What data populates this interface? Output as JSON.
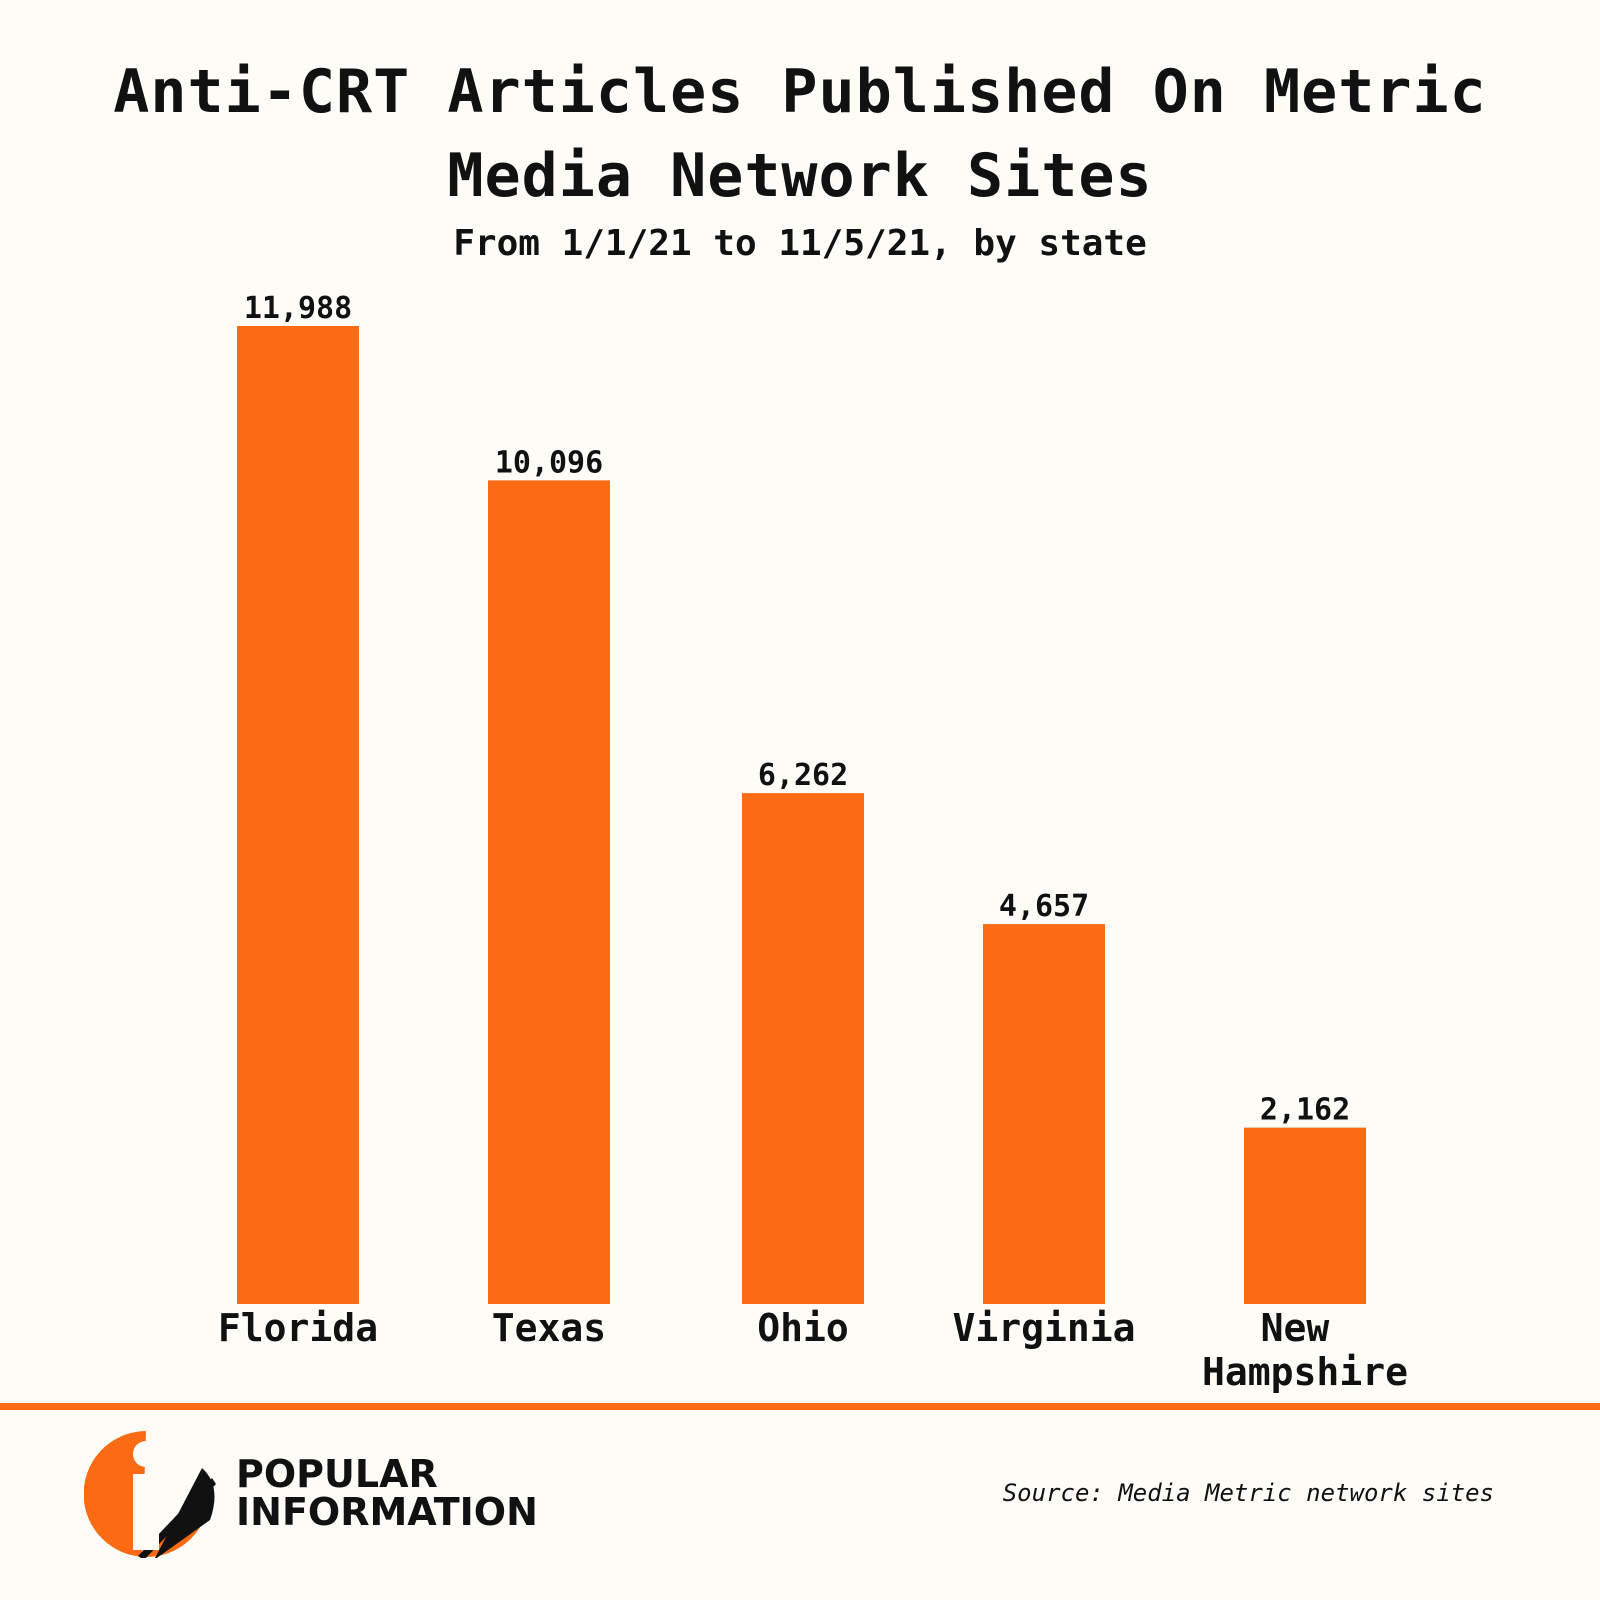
{
  "header": {
    "title_line1": "Anti-CRT Articles Published On Metric",
    "title_line2": "Media Network Sites",
    "subtitle": "From 1/1/21 to 11/5/21, by state"
  },
  "chart_data": {
    "type": "bar",
    "title": "Anti-CRT Articles Published On Metric Media Network Sites",
    "subtitle": "From 1/1/21 to 11/5/21, by state",
    "categories": [
      [
        "Florida"
      ],
      [
        "Texas"
      ],
      [
        "Ohio"
      ],
      [
        "Virginia"
      ],
      [
        "New",
        "Hampshire"
      ]
    ],
    "values": [
      11988,
      10096,
      6262,
      4657,
      2162
    ],
    "value_labels": [
      "11,988",
      "10,096",
      "6,262",
      "4,657",
      "2,162"
    ],
    "ylim": [
      0,
      11988
    ],
    "grid": false,
    "bar_color": "#fa6b14"
  },
  "footer": {
    "brand_line1": "POPULAR",
    "brand_line2": "INFORMATION",
    "source": "Source: Media Metric network sites",
    "accent_color": "#fa6b14"
  }
}
